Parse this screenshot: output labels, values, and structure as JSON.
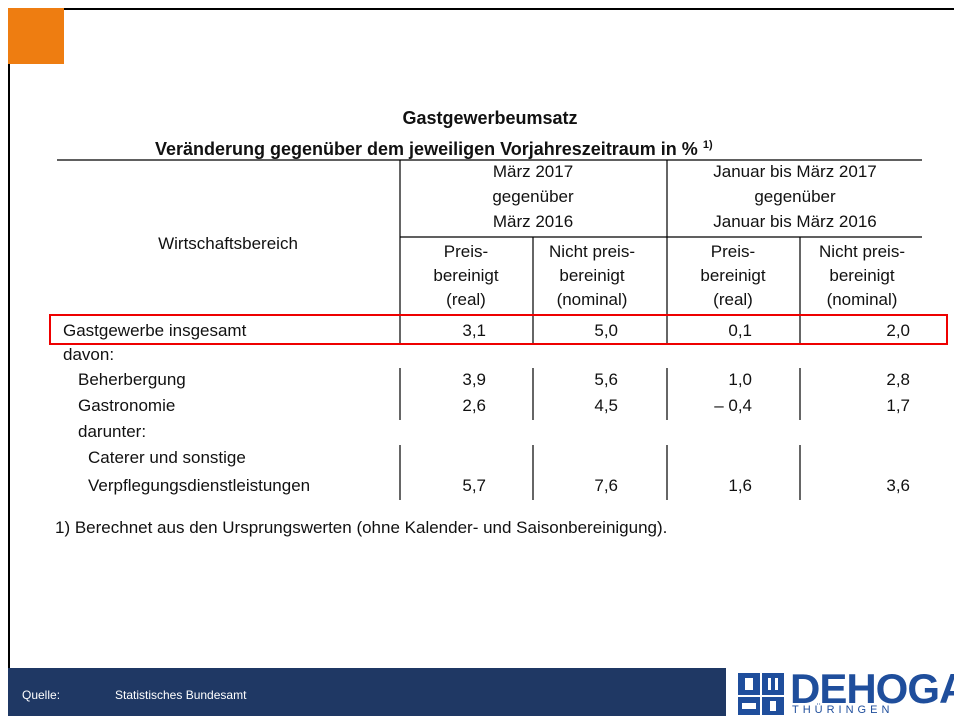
{
  "title": {
    "line1": "Gastgewerbeumsatz",
    "line2": "Veränderung gegenüber dem jeweiligen Vorjahreszeitraum in %",
    "note": "1)"
  },
  "table": {
    "row_header": "Wirtschaftsbereich",
    "groups": [
      [
        "März 2017",
        "gegenüber",
        "März 2016"
      ],
      [
        "Januar bis März 2017",
        "gegenüber",
        "Januar bis März 2016"
      ]
    ],
    "subheaders": [
      [
        "Preis-",
        "bereinigt",
        "(real)"
      ],
      [
        "Nicht preis-",
        "bereinigt",
        "(nominal)"
      ],
      [
        "Preis-",
        "bereinigt",
        "(real)"
      ],
      [
        "Nicht preis-",
        "bereinigt",
        "(nominal)"
      ]
    ],
    "rows": [
      {
        "label": [
          "Gastgewerbe insgesamt"
        ],
        "values": [
          "3,1",
          "5,0",
          "0,1",
          "2,0"
        ]
      },
      {
        "label": [
          "davon:"
        ]
      },
      {
        "label": [
          "Beherbergung"
        ],
        "values": [
          "3,9",
          "5,6",
          "1,0",
          "2,8"
        ]
      },
      {
        "label": [
          "Gastronomie"
        ],
        "values": [
          "2,6",
          "4,5",
          "– 0,4",
          "1,7"
        ]
      },
      {
        "label": [
          "darunter:"
        ]
      },
      {
        "label": [
          "Caterer und sonstige",
          "Verpflegungsdienstleistungen"
        ],
        "values": [
          "5,7",
          "7,6",
          "1,6",
          "3,6"
        ]
      }
    ]
  },
  "footnote": "1) Berechnet aus den Ursprungswerten (ohne Kalender- und Saisonbereinigung).",
  "footer": {
    "label": "Quelle:",
    "source": "Statistisches Bundesamt"
  },
  "logo": {
    "name": "DEHOGA",
    "region": "THÜRINGEN"
  }
}
